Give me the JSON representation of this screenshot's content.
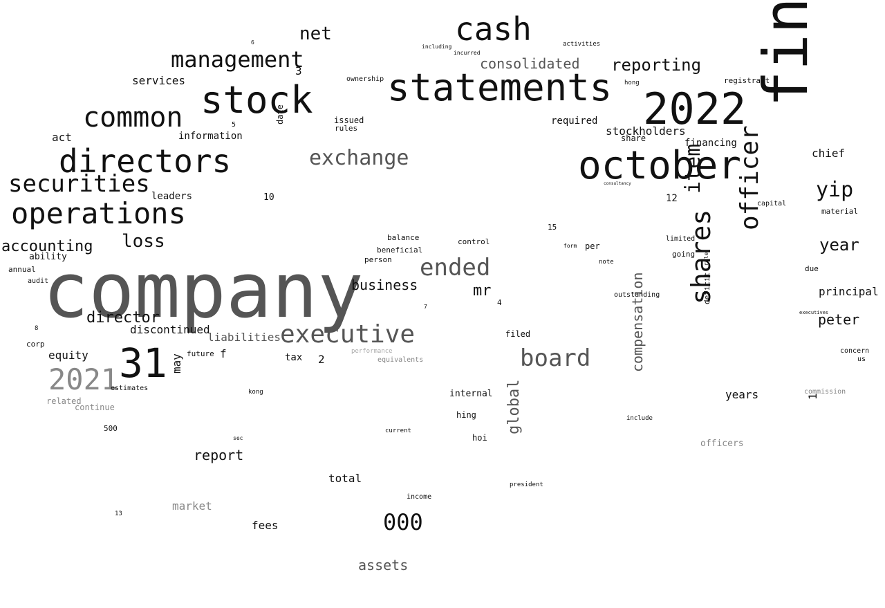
{
  "colors": {
    "background": "#ffffff",
    "dark": "#111111",
    "mid": "#555555",
    "light": "#888888",
    "faint": "#aaaaaa"
  },
  "words": [
    "company",
    "financial",
    "statements",
    "stock",
    "directors",
    "october",
    "2022",
    "common",
    "operations",
    "securities",
    "cash",
    "management",
    "shares",
    "officer",
    "executive",
    "31",
    "2021",
    "board",
    "exchange",
    "ended",
    "net",
    "loss",
    "reporting",
    "consolidated",
    "item",
    "year",
    "yip",
    "director",
    "business",
    "accounting",
    "peter",
    "services",
    "report",
    "global",
    "mr",
    "000",
    "equity",
    "discontinued",
    "liabilities",
    "assets",
    "market",
    "fees",
    "total",
    "tax",
    "compensation",
    "chief",
    "years",
    "principal",
    "information",
    "stockholders",
    "financing",
    "required",
    "issued",
    "act",
    "ability",
    "leaders",
    "internal",
    "hing",
    "hoi",
    "may",
    "related",
    "continue",
    "annual",
    "audit",
    "corp",
    "filed",
    "control",
    "beneficial",
    "balance",
    "person",
    "going",
    "limited",
    "officers",
    "due",
    "material",
    "capital",
    "estimates",
    "future",
    "equivalents",
    "performance",
    "ownership",
    "rules",
    "including",
    "incurred",
    "activities",
    "hong",
    "registrant",
    "share",
    "consultancy",
    "income",
    "date",
    "f",
    "1",
    "2",
    "3",
    "4",
    "5",
    "6",
    "7",
    "8",
    "10",
    "12",
    "13",
    "15",
    "500",
    "sec",
    "kong",
    "outstanding",
    "form",
    "per",
    "note",
    "include",
    "president",
    "current",
    "deficit",
    "rule",
    "executives",
    "commission",
    "us",
    "concern"
  ]
}
